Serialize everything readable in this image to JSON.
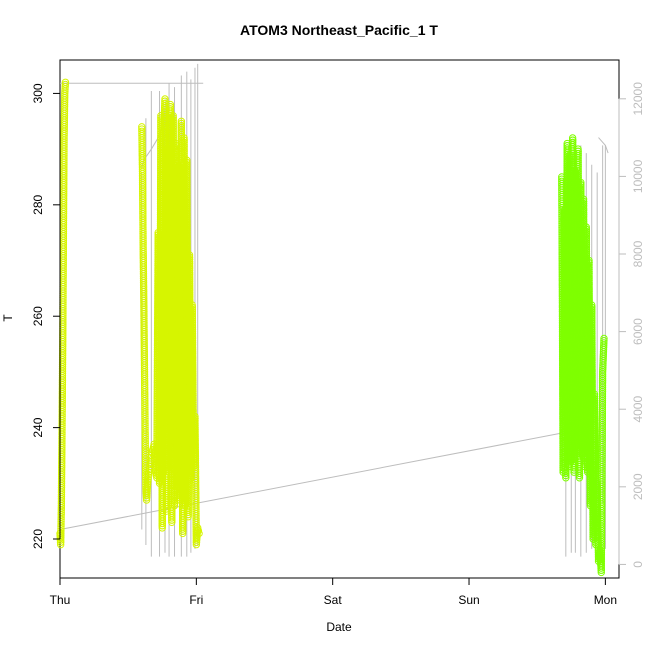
{
  "chart_data": {
    "type": "scatter",
    "title": "ATOM3 Northeast_Pacific_1 T",
    "xlabel": "Date",
    "ylabel": "T",
    "x_ticks": [
      "Thu",
      "Fri",
      "Sat",
      "Sun",
      "Mon"
    ],
    "xlim": [
      0,
      4.1
    ],
    "ylim": [
      213,
      306
    ],
    "y_ticks": [
      220,
      240,
      260,
      280,
      300
    ],
    "y2lim": [
      -350,
      13000
    ],
    "y2_ticks": [
      0,
      2000,
      4000,
      6000,
      8000,
      10000,
      12000
    ],
    "grid": false,
    "legend": "none",
    "colors": {
      "early": "#d6f500",
      "late": "#7fff00",
      "secondary_line": "#bdbdbd",
      "axis": "#000000",
      "secondary_axis": "#bdbdbd"
    },
    "series": [
      {
        "kind": "points",
        "segments": [
          {
            "x": [
              0.0,
              0.005,
              0.01,
              0.015,
              0.02,
              0.025,
              0.03,
              0.035,
              0.04
            ],
            "y": [
              221,
              219,
              226,
              240,
              255,
              274,
              292,
              300,
              302
            ]
          },
          {
            "x": [
              0.6,
              0.605,
              0.61,
              0.615,
              0.62,
              0.625,
              0.63,
              0.635,
              0.64,
              0.65,
              0.66,
              0.67,
              0.68,
              0.69,
              0.7,
              0.71,
              0.72,
              0.73,
              0.74,
              0.75,
              0.76,
              0.77,
              0.78,
              0.79,
              0.8,
              0.81,
              0.82,
              0.83,
              0.84,
              0.85,
              0.86,
              0.87,
              0.88,
              0.89,
              0.9,
              0.91,
              0.92,
              0.93,
              0.94,
              0.95,
              0.96,
              0.97,
              0.98,
              0.99,
              1.0,
              1.01,
              1.02
            ],
            "y": [
              294,
              286,
              272,
              262,
              250,
              238,
              229,
              227,
              229,
              232,
              233,
              235,
              236,
              237,
              232,
              231,
              275,
              230,
              296,
              222,
              293,
              299,
              225,
              290,
              232,
              298,
              223,
              296,
              226,
              291,
              229,
              287,
              227,
              295,
              221,
              292,
              226,
              288,
              224,
              271,
              231,
              262,
              233,
              242,
              219,
              222,
              221
            ]
          }
        ]
      },
      {
        "kind": "points",
        "segments": [
          {
            "x": [
              3.68,
              3.685,
              3.69,
              3.7,
              3.71,
              3.72,
              3.73,
              3.74,
              3.75,
              3.76,
              3.77,
              3.78,
              3.79,
              3.8,
              3.81,
              3.82,
              3.83,
              3.84,
              3.85,
              3.86,
              3.87,
              3.88,
              3.89,
              3.9,
              3.91,
              3.92,
              3.93,
              3.94,
              3.95,
              3.96,
              3.97,
              3.98,
              3.99
            ],
            "y": [
              285,
              262,
              232,
              279,
              231,
              291,
              233,
              289,
              234,
              292,
              232,
              286,
              236,
              290,
              231,
              284,
              235,
              281,
              233,
              276,
              232,
              270,
              226,
              262,
              220,
              246,
              219,
              230,
              216,
              218,
              214,
              250,
              256
            ]
          }
        ]
      },
      {
        "kind": "line",
        "axis": "secondary",
        "segments": [
          {
            "x": [
              0.0,
              1.0,
              1.0,
              1.05
            ],
            "y": [
              12400,
              12400,
              12400,
              12400
            ]
          },
          {
            "x": [
              0.6,
              0.61,
              0.67,
              0.72,
              0.75,
              0.78
            ],
            "y": [
              10200,
              10400,
              10700,
              11000,
              11300,
              12000
            ]
          },
          {
            "x": [
              0.0,
              3.85
            ],
            "y": [
              900,
              3500
            ]
          },
          {
            "x": [
              3.95,
              4.0,
              4.02
            ],
            "y": [
              11000,
              10800,
              10600
            ]
          }
        ]
      },
      {
        "kind": "spikes",
        "axis": "secondary",
        "x": [
          0.6,
          0.63,
          0.67,
          0.73,
          0.77,
          0.8,
          0.84,
          0.89,
          0.93,
          0.96,
          0.99,
          1.01,
          3.68,
          3.71,
          3.75,
          3.78,
          3.82,
          3.86,
          3.9,
          3.94,
          3.98,
          4.0
        ],
        "y_top": [
          10100,
          11500,
          12200,
          12200,
          11800,
          12400,
          12300,
          12600,
          12700,
          12500,
          12800,
          12900,
          9200,
          10300,
          10700,
          10900,
          10800,
          10600,
          10300,
          10100,
          10800,
          10800
        ],
        "y_bottom": [
          900,
          500,
          200,
          200,
          300,
          200,
          200,
          200,
          200,
          300,
          400,
          500,
          2500,
          200,
          300,
          300,
          200,
          300,
          400,
          1600,
          1600,
          400
        ]
      }
    ]
  }
}
